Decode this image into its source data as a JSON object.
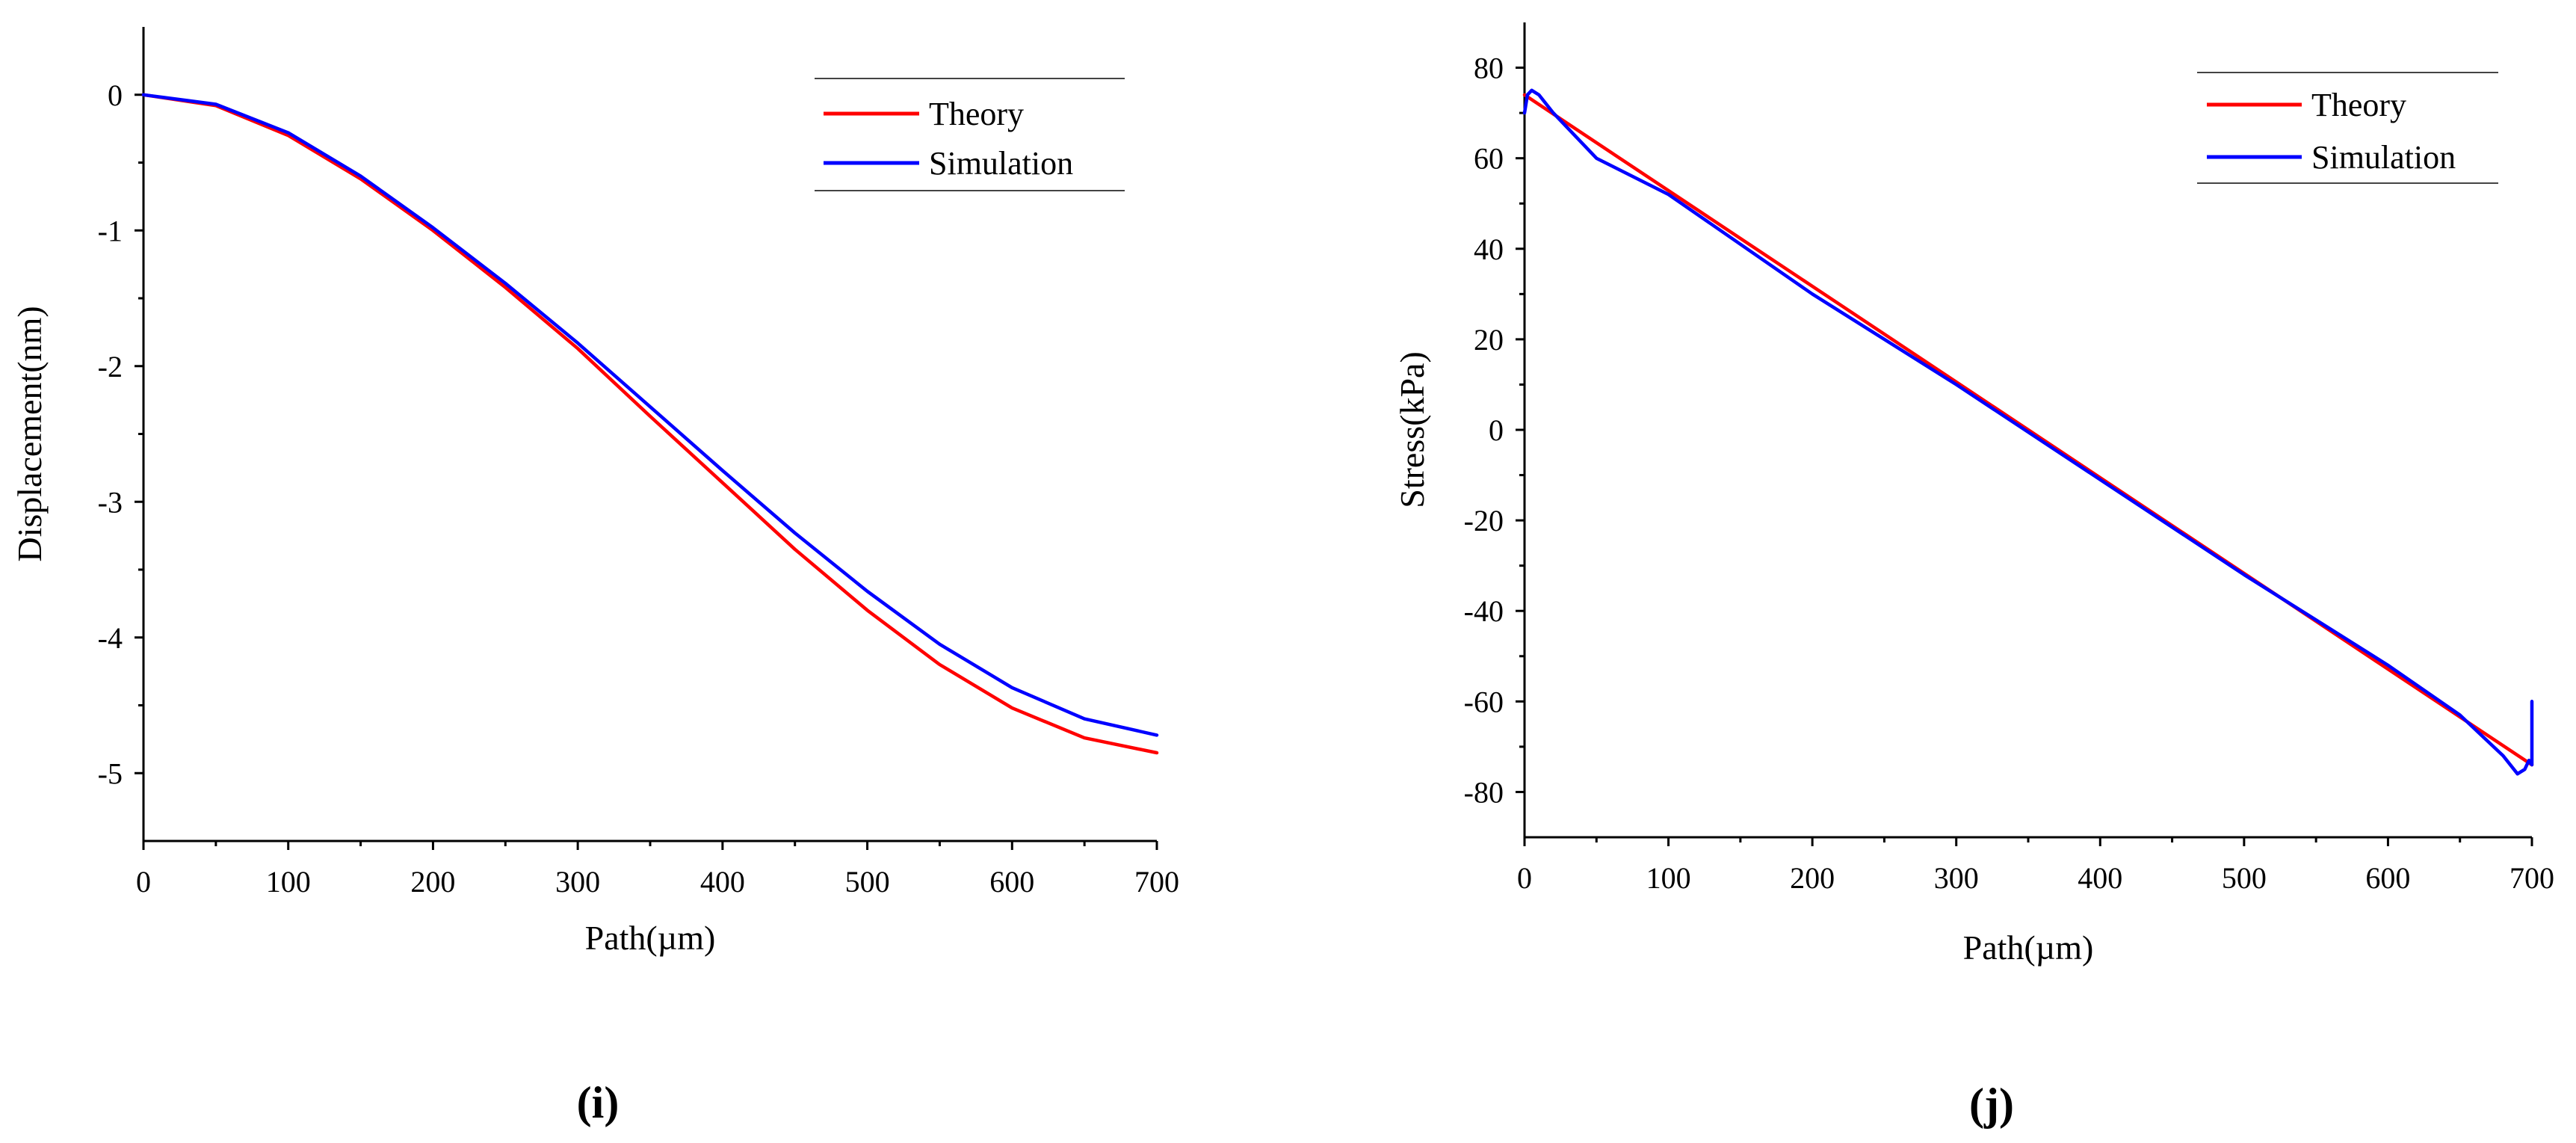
{
  "chart_data": [
    {
      "type": "line",
      "panel_label": "(i)",
      "xlabel": "Path(µm)",
      "ylabel": "Displacement(nm)",
      "xlim": [
        0,
        700
      ],
      "ylim": [
        -5.5,
        0.5
      ],
      "xticks": [
        0,
        100,
        200,
        300,
        400,
        500,
        600,
        700
      ],
      "xtick_labels": [
        "0",
        "100",
        "200",
        "300",
        "400",
        "500",
        "600",
        "700"
      ],
      "yticks": [
        0,
        -1,
        -2,
        -3,
        -4,
        -5
      ],
      "ytick_labels": [
        "0",
        "-1",
        "-2",
        "-3",
        "-4",
        "-5"
      ],
      "legend_position": "top-right",
      "series": [
        {
          "name": "Theory",
          "color": "#ff0000",
          "x": [
            0,
            50,
            100,
            150,
            200,
            250,
            300,
            350,
            400,
            450,
            500,
            550,
            600,
            650,
            700
          ],
          "y": [
            0,
            -0.08,
            -0.3,
            -0.62,
            -1.0,
            -1.42,
            -1.87,
            -2.37,
            -2.86,
            -3.35,
            -3.8,
            -4.2,
            -4.52,
            -4.74,
            -4.85
          ]
        },
        {
          "name": "Simulation",
          "color": "#0000ff",
          "x": [
            0,
            50,
            100,
            150,
            200,
            250,
            300,
            350,
            400,
            450,
            500,
            550,
            600,
            650,
            700
          ],
          "y": [
            0,
            -0.07,
            -0.28,
            -0.6,
            -0.98,
            -1.39,
            -1.83,
            -2.3,
            -2.77,
            -3.23,
            -3.66,
            -4.05,
            -4.37,
            -4.6,
            -4.72
          ]
        }
      ]
    },
    {
      "type": "line",
      "panel_label": "(j)",
      "xlabel": "Path(µm)",
      "ylabel": "Stress(kPa)",
      "xlim": [
        0,
        700
      ],
      "ylim": [
        -90,
        90
      ],
      "xticks": [
        0,
        100,
        200,
        300,
        400,
        500,
        600,
        700
      ],
      "xtick_labels": [
        "0",
        "100",
        "200",
        "300",
        "400",
        "500",
        "600",
        "700"
      ],
      "yticks": [
        80,
        60,
        40,
        20,
        0,
        -20,
        -40,
        -60,
        -80
      ],
      "ytick_labels": [
        "80",
        "60",
        "40",
        "20",
        "0",
        "-20",
        "-40",
        "-60",
        "-80"
      ],
      "legend_position": "top-right",
      "series": [
        {
          "name": "Theory",
          "color": "#ff0000",
          "x": [
            0,
            700
          ],
          "y": [
            74,
            -74
          ]
        },
        {
          "name": "Simulation",
          "color": "#0000ff",
          "x": [
            0,
            2,
            5,
            10,
            20,
            50,
            100,
            200,
            300,
            400,
            500,
            600,
            650,
            680,
            690,
            695,
            698,
            700,
            700
          ],
          "y": [
            70,
            74,
            75,
            74,
            70,
            60,
            52,
            30,
            10,
            -11,
            -32,
            -52,
            -63,
            -72,
            -76,
            -75,
            -73,
            -74,
            -60
          ]
        }
      ]
    }
  ]
}
